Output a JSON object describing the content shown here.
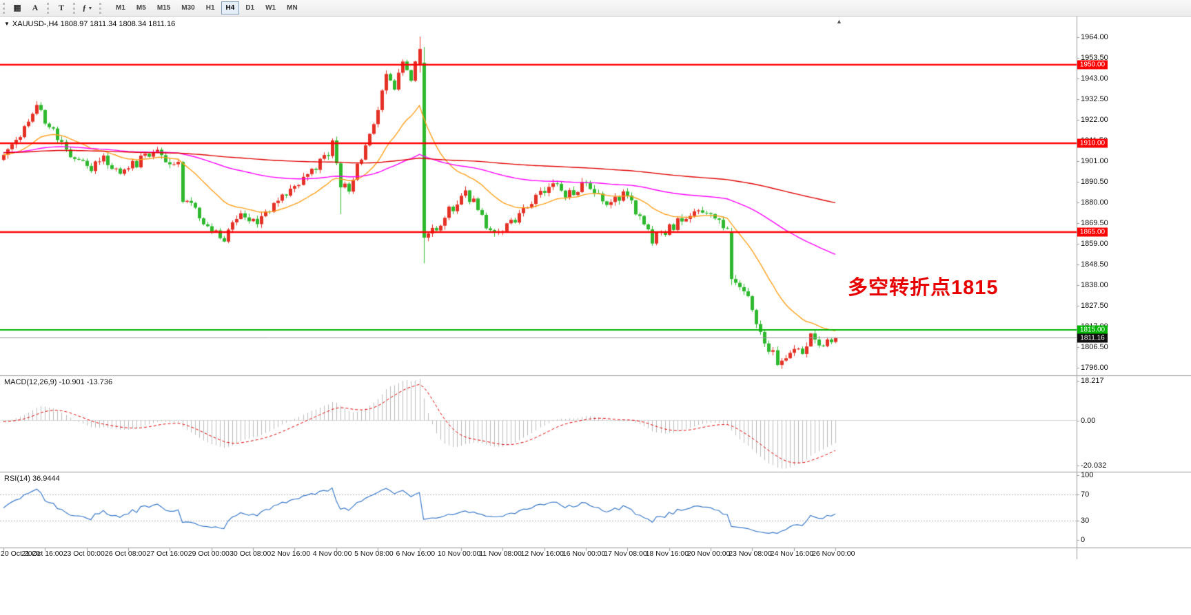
{
  "toolbar": {
    "left_icons": [
      {
        "name": "bar-chart-icon",
        "glyph": "▦"
      },
      {
        "name": "cursor-a-icon",
        "glyph": "A"
      },
      {
        "name": "text-tool-icon",
        "glyph": "T"
      },
      {
        "name": "indicators-icon",
        "glyph": "ƒ"
      }
    ],
    "timeframes": [
      "M1",
      "M5",
      "M15",
      "M30",
      "H1",
      "H4",
      "D1",
      "W1",
      "MN"
    ],
    "active_timeframe": "H4"
  },
  "chart": {
    "symbol_line": "XAUUSD-,H4  1808.97 1811.34 1808.34 1811.16",
    "symbol": "XAUUSD-",
    "period": "H4",
    "ohlc": {
      "open": 1808.97,
      "high": 1811.34,
      "low": 1808.34,
      "close": 1811.16
    },
    "annotation": "多空转折点1815",
    "annotation_color": "#e60000",
    "current_price_label": "1811.16",
    "levels": [
      {
        "price": 1950.0,
        "label": "1950.00",
        "color": "#ff0000"
      },
      {
        "price": 1910.0,
        "label": "1910.00",
        "color": "#ff0000"
      },
      {
        "price": 1865.0,
        "label": "1865.00",
        "color": "#ff0000"
      },
      {
        "price": 1815.0,
        "label": "1815.00",
        "color": "#00b300"
      }
    ],
    "price_axis": {
      "max": 1974.5,
      "min": 1792.0,
      "ticks": [
        {
          "value": 1964.0,
          "label": "1964.00"
        },
        {
          "value": 1953.5,
          "label": "1953.50"
        },
        {
          "value": 1943.0,
          "label": "1943.00"
        },
        {
          "value": 1932.5,
          "label": "1932.50"
        },
        {
          "value": 1922.0,
          "label": "1922.00"
        },
        {
          "value": 1911.5,
          "label": "1911.50"
        },
        {
          "value": 1901.0,
          "label": "1901.00"
        },
        {
          "value": 1890.5,
          "label": "1890.50"
        },
        {
          "value": 1880.0,
          "label": "1880.00"
        },
        {
          "value": 1869.5,
          "label": "1869.50"
        },
        {
          "value": 1859.0,
          "label": "1859.00"
        },
        {
          "value": 1848.5,
          "label": "1848.50"
        },
        {
          "value": 1838.0,
          "label": "1838.00"
        },
        {
          "value": 1827.5,
          "label": "1827.50"
        },
        {
          "value": 1817.0,
          "label": "1817.00"
        },
        {
          "value": 1806.5,
          "label": "1806.50"
        },
        {
          "value": 1796.0,
          "label": "1796.00"
        }
      ]
    },
    "time_labels": [
      "20 Oct 2020",
      "21 Oct 16:00",
      "23 Oct 00:00",
      "26 Oct 08:00",
      "27 Oct 16:00",
      "29 Oct 00:00",
      "30 Oct 08:00",
      "2 Nov 16:00",
      "4 Nov 00:00",
      "5 Nov 08:00",
      "6 Nov 16:00",
      "10 Nov 00:00",
      "11 Nov 08:00",
      "12 Nov 16:00",
      "16 Nov 00:00",
      "17 Nov 08:00",
      "18 Nov 16:00",
      "20 Nov 00:00",
      "23 Nov 08:00",
      "24 Nov 16:00",
      "26 Nov 00:00"
    ]
  },
  "indicators": {
    "macd": {
      "label": "MACD(12,26,9) -10.901 -13.736",
      "fast": 12,
      "slow": 26,
      "signal": 9,
      "value": -10.901,
      "signal_value": -13.736,
      "axis_labels": [
        "18.217",
        "0.00",
        "-20.032"
      ]
    },
    "rsi": {
      "label": "RSI(14) 36.9444",
      "period": 14,
      "value": 36.9444,
      "upper": 70,
      "lower": 30,
      "axis_labels": [
        "100",
        "70",
        "30",
        "0"
      ],
      "axis_values": [
        100,
        70,
        30,
        0
      ]
    }
  },
  "chart_data": {
    "type": "candlestick",
    "symbol": "XAUUSD",
    "timeframe": "H4",
    "visible_candles": 201,
    "history_padding": 220,
    "seed": 20201126,
    "noise": 2.6,
    "wick": 1.9,
    "price_keyframes": [
      [
        -220,
        1908
      ],
      [
        -195,
        1899
      ],
      [
        -170,
        1914
      ],
      [
        -145,
        1901
      ],
      [
        -120,
        1909
      ],
      [
        -95,
        1897
      ],
      [
        -70,
        1905
      ],
      [
        -45,
        1912
      ],
      [
        -20,
        1903
      ],
      [
        0,
        1904
      ],
      [
        3,
        1912
      ],
      [
        6,
        1922
      ],
      [
        8,
        1928
      ],
      [
        10,
        1922
      ],
      [
        13,
        1914
      ],
      [
        16,
        1905
      ],
      [
        20,
        1897
      ],
      [
        24,
        1903
      ],
      [
        28,
        1895
      ],
      [
        32,
        1900
      ],
      [
        36,
        1907
      ],
      [
        40,
        1901
      ],
      [
        42,
        1899
      ],
      [
        43,
        1882
      ],
      [
        45,
        1879
      ],
      [
        47,
        1872
      ],
      [
        50,
        1867
      ],
      [
        53,
        1861
      ],
      [
        55,
        1868
      ],
      [
        57,
        1873
      ],
      [
        60,
        1869
      ],
      [
        64,
        1877
      ],
      [
        68,
        1885
      ],
      [
        72,
        1891
      ],
      [
        76,
        1900
      ],
      [
        79,
        1909
      ],
      [
        81,
        1890
      ],
      [
        83,
        1884
      ],
      [
        85,
        1898
      ],
      [
        88,
        1913
      ],
      [
        90,
        1929
      ],
      [
        92,
        1944
      ],
      [
        94,
        1939
      ],
      [
        96,
        1949
      ],
      [
        98,
        1944
      ],
      [
        100,
        1958
      ],
      [
        101,
        1862
      ],
      [
        103,
        1866
      ],
      [
        105,
        1870
      ],
      [
        108,
        1878
      ],
      [
        111,
        1886
      ],
      [
        114,
        1876
      ],
      [
        117,
        1866
      ],
      [
        120,
        1867
      ],
      [
        124,
        1874
      ],
      [
        128,
        1882
      ],
      [
        132,
        1888
      ],
      [
        136,
        1884
      ],
      [
        140,
        1889
      ],
      [
        143,
        1884
      ],
      [
        146,
        1879
      ],
      [
        150,
        1886
      ],
      [
        153,
        1871
      ],
      [
        156,
        1861
      ],
      [
        160,
        1867
      ],
      [
        164,
        1872
      ],
      [
        168,
        1876
      ],
      [
        171,
        1872
      ],
      [
        174,
        1868
      ],
      [
        175,
        1841
      ],
      [
        177,
        1836
      ],
      [
        180,
        1827
      ],
      [
        182,
        1812
      ],
      [
        184,
        1806
      ],
      [
        186,
        1799
      ],
      [
        188,
        1803
      ],
      [
        190,
        1808
      ],
      [
        192,
        1804
      ],
      [
        194,
        1812
      ],
      [
        196,
        1807
      ],
      [
        198,
        1809
      ],
      [
        200,
        1811.16
      ]
    ],
    "candle_overrides": {
      "8": [
        null,
        1931.5,
        null,
        null
      ],
      "81": [
        null,
        null,
        1874,
        null
      ],
      "100": [
        1950,
        1964.3,
        1946,
        1958
      ],
      "101": [
        1951,
        1959,
        1849,
        1862
      ],
      "175": [
        1865,
        1867,
        1838,
        1841
      ],
      "186": [
        null,
        null,
        1796.8,
        null
      ],
      "200": [
        1808.97,
        1811.34,
        1808.34,
        1811.16
      ]
    },
    "moving_averages": [
      {
        "type": "ema",
        "period": 21,
        "color": "#ff9f1a"
      },
      {
        "type": "ema",
        "period": 100,
        "color": "#ff00ff"
      },
      {
        "type": "sma",
        "period": 200,
        "color": "#e00000"
      }
    ],
    "horizontal_levels": [
      1950,
      1910,
      1865,
      1815
    ],
    "colors": {
      "bull": "#e53026",
      "bear": "#2eb82e",
      "level_red": "#ff0000",
      "level_green": "#00b300",
      "current_price_line": "#999999",
      "macd_hist": "#bbbbbb",
      "macd_signal": "#e00000",
      "rsi": "#3a78c9",
      "badge_current_bg": "#111111"
    }
  }
}
